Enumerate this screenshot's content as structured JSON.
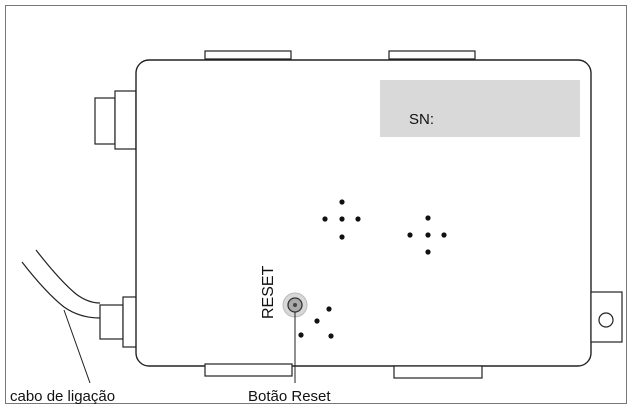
{
  "device": {
    "serial_label": "SN:",
    "reset_label": "RESET"
  },
  "callouts": {
    "cable": "cabo de ligação",
    "reset_button": "Botão Reset"
  }
}
